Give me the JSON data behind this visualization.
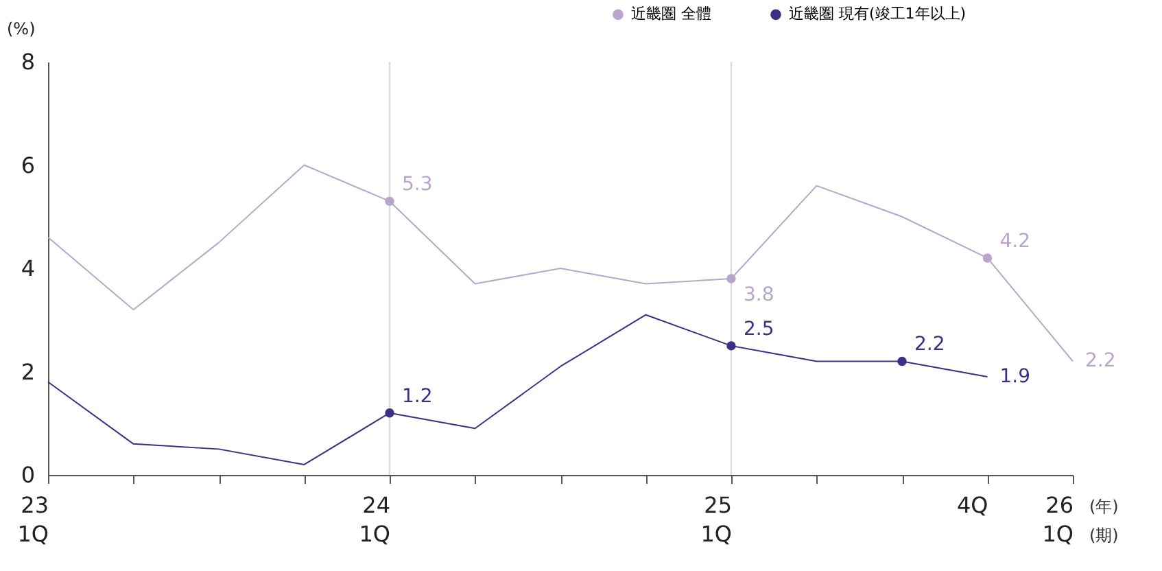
{
  "chart_data": {
    "type": "line",
    "ylabel": "(%)",
    "categories": [
      "23\n1Q",
      null,
      null,
      null,
      "24\n1Q",
      null,
      null,
      null,
      "25\n1Q",
      null,
      null,
      "4Q",
      "26\n1Q"
    ],
    "series": [
      {
        "name": "近畿圏 全體",
        "color": "#b9a5cc",
        "values": [
          4.6,
          3.2,
          4.5,
          6.0,
          5.3,
          3.7,
          4.0,
          3.7,
          3.8,
          5.6,
          5.0,
          4.2,
          2.2
        ],
        "value_labels": [
          null,
          null,
          null,
          null,
          "5.3",
          null,
          null,
          null,
          "3.8",
          null,
          null,
          "4.2",
          "2.2"
        ]
      },
      {
        "name": "近畿圏 現有(竣工1年以上)",
        "color": "#3b2f86",
        "values": [
          1.8,
          0.6,
          0.5,
          0.2,
          1.2,
          0.9,
          2.1,
          3.1,
          2.5,
          2.2,
          2.2,
          1.9,
          null
        ],
        "value_labels": [
          null,
          null,
          null,
          null,
          "1.2",
          null,
          null,
          null,
          "2.5",
          null,
          "2.2",
          "1.9",
          null
        ]
      }
    ],
    "ylim": [
      0,
      8
    ],
    "yticks": [
      0,
      2,
      4,
      6,
      8
    ],
    "grid": false,
    "legend": "top right",
    "ref_lines": [
      {
        "axis": "x",
        "value": "24\n1Q",
        "color": "#dddddd"
      },
      {
        "axis": "x",
        "value": "25\n1Q",
        "color": "#dddddd"
      }
    ],
    "annotations": [
      "(年)",
      "(期)"
    ]
  }
}
